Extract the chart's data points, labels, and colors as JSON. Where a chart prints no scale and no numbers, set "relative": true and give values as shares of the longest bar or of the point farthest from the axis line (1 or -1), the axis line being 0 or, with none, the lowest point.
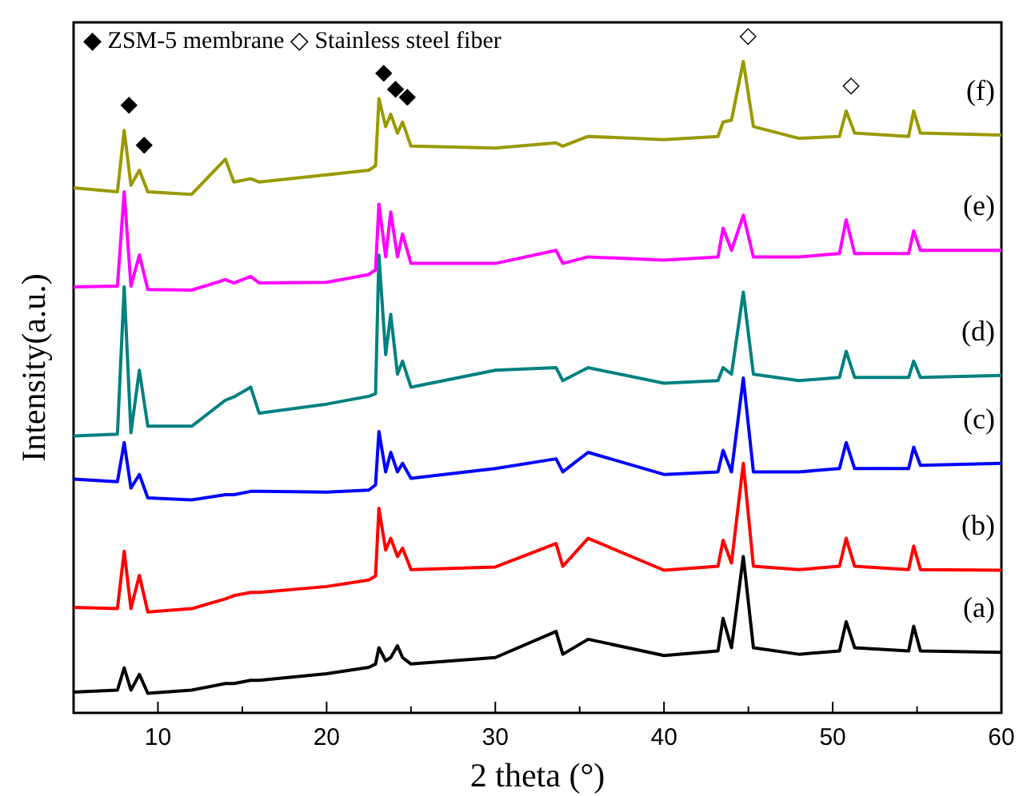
{
  "chart_data": {
    "type": "line",
    "relative": true,
    "xlabel": "2 theta (°)",
    "ylabel": "Intensity(a.u.)",
    "xlim": [
      5,
      60
    ],
    "xticks": [
      10,
      {
        "value": 15,
        "label": null
      },
      20,
      {
        "value": 25,
        "label": null
      },
      30,
      {
        "value": 35,
        "label": null
      },
      40,
      {
        "value": 45,
        "label": null
      },
      50,
      {
        "value": 55,
        "label": null
      },
      60
    ],
    "tick_labels": "x",
    "grid": false,
    "legend": false,
    "marker": "none",
    "line_style": "solid",
    "x": [
      5,
      7.6,
      8,
      8.4,
      8.9,
      9.4,
      12,
      14,
      14.5,
      15.5,
      16,
      20,
      22.5,
      22.9,
      23.1,
      23.5,
      23.8,
      24.2,
      24.5,
      25,
      30,
      33.6,
      34,
      35.5,
      40,
      43.2,
      43.5,
      44,
      44.7,
      45.3,
      48,
      50.4,
      50.8,
      51.3,
      54.5,
      54.8,
      55.2,
      60
    ],
    "series": [
      {
        "name": "(a)",
        "color": "#000000",
        "values": [
          0.032,
          0.035,
          0.069,
          0.035,
          0.059,
          0.03,
          0.035,
          0.045,
          0.045,
          0.05,
          0.05,
          0.06,
          0.07,
          0.075,
          0.1,
          0.08,
          0.085,
          0.103,
          0.085,
          0.075,
          0.085,
          0.125,
          0.09,
          0.113,
          0.088,
          0.095,
          0.145,
          0.1,
          0.24,
          0.1,
          0.09,
          0.095,
          0.14,
          0.1,
          0.095,
          0.133,
          0.095,
          0.093
        ]
      },
      {
        "name": "(b)",
        "color": "#ff0000",
        "values": [
          0.162,
          0.16,
          0.248,
          0.16,
          0.211,
          0.155,
          0.16,
          0.175,
          0.18,
          0.185,
          0.185,
          0.194,
          0.204,
          0.21,
          0.314,
          0.25,
          0.268,
          0.24,
          0.253,
          0.22,
          0.224,
          0.26,
          0.225,
          0.268,
          0.219,
          0.225,
          0.265,
          0.23,
          0.383,
          0.225,
          0.22,
          0.225,
          0.268,
          0.225,
          0.22,
          0.256,
          0.22,
          0.219
        ]
      },
      {
        "name": "(c)",
        "color": "#0000ff",
        "values": [
          0.359,
          0.355,
          0.415,
          0.345,
          0.366,
          0.33,
          0.327,
          0.335,
          0.335,
          0.34,
          0.34,
          0.339,
          0.342,
          0.35,
          0.432,
          0.37,
          0.4,
          0.37,
          0.383,
          0.36,
          0.375,
          0.39,
          0.37,
          0.4,
          0.366,
          0.37,
          0.403,
          0.37,
          0.514,
          0.37,
          0.37,
          0.375,
          0.415,
          0.375,
          0.375,
          0.408,
          0.38,
          0.383
        ]
      },
      {
        "name": "(d)",
        "color": "#008080",
        "values": [
          0.425,
          0.428,
          0.654,
          0.43,
          0.526,
          0.44,
          0.44,
          0.48,
          0.485,
          0.5,
          0.46,
          0.474,
          0.486,
          0.49,
          0.703,
          0.55,
          0.612,
          0.52,
          0.54,
          0.5,
          0.526,
          0.53,
          0.51,
          0.53,
          0.506,
          0.51,
          0.53,
          0.52,
          0.646,
          0.52,
          0.51,
          0.515,
          0.555,
          0.515,
          0.515,
          0.54,
          0.515,
          0.518
        ]
      },
      {
        "name": "(e)",
        "color": "#ff00ff",
        "values": [
          0.654,
          0.655,
          0.8,
          0.655,
          0.703,
          0.65,
          0.649,
          0.665,
          0.66,
          0.67,
          0.66,
          0.661,
          0.673,
          0.68,
          0.781,
          0.7,
          0.769,
          0.7,
          0.735,
          0.69,
          0.69,
          0.71,
          0.69,
          0.7,
          0.695,
          0.7,
          0.744,
          0.71,
          0.764,
          0.7,
          0.7,
          0.705,
          0.757,
          0.705,
          0.705,
          0.74,
          0.71,
          0.71
        ]
      },
      {
        "name": "(f)",
        "color": "#999900",
        "values": [
          0.806,
          0.8,
          0.894,
          0.81,
          0.833,
          0.8,
          0.796,
          0.85,
          0.815,
          0.82,
          0.815,
          0.826,
          0.833,
          0.84,
          0.943,
          0.9,
          0.919,
          0.89,
          0.907,
          0.87,
          0.867,
          0.875,
          0.87,
          0.885,
          0.88,
          0.885,
          0.907,
          0.91,
          1.0,
          0.9,
          0.882,
          0.885,
          0.924,
          0.89,
          0.885,
          0.924,
          0.89,
          0.887
        ]
      }
    ],
    "annotations": [
      "◆ ZSM-5 membrane ◇ Stainless steel fiber",
      {
        "text": "◆",
        "x": 8,
        "y": 0.894
      },
      {
        "text": "◆",
        "x": 8.9,
        "y": 0.833
      },
      {
        "text": "◆",
        "x": 23.1,
        "y": 0.943
      },
      {
        "text": "◆",
        "x": 23.8,
        "y": 0.919
      },
      {
        "text": "◆",
        "x": 24.5,
        "y": 0.907
      },
      {
        "text": "◇",
        "x": 44.7,
        "y": 1.0
      },
      {
        "text": "◇",
        "x": 50.8,
        "y": 0.924
      }
    ]
  }
}
